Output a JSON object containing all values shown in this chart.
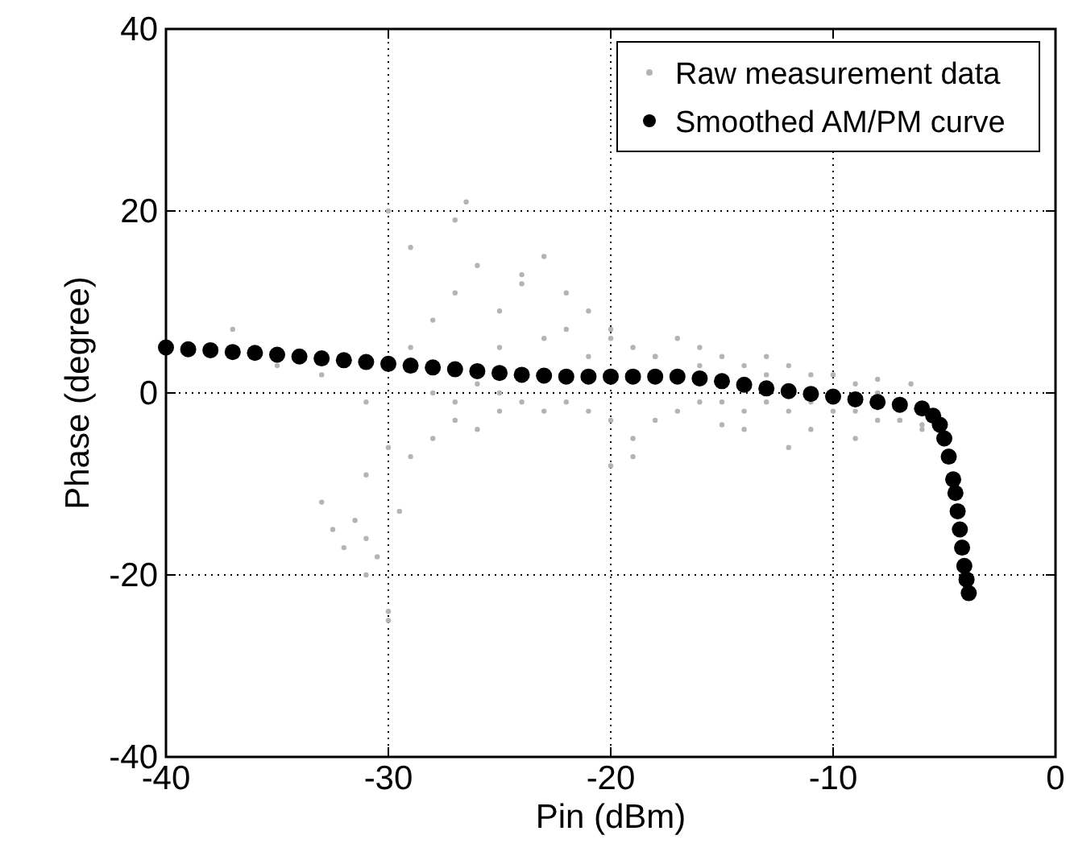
{
  "chart_data": {
    "type": "scatter",
    "xlabel": "Pin (dBm)",
    "ylabel": "Phase (degree)",
    "xlim": [
      -40,
      0
    ],
    "ylim": [
      -40,
      40
    ],
    "xticks": [
      -40,
      -30,
      -20,
      -10,
      0
    ],
    "yticks": [
      -40,
      -20,
      0,
      20,
      40
    ],
    "grid": true,
    "legend": "top right",
    "marker": "circle",
    "series": [
      {
        "name": "Raw measurement data",
        "color": "#b4b4b4",
        "x": [
          -33,
          -32.5,
          -32,
          -31.5,
          -31,
          -30,
          -30.5,
          -29.5,
          -31,
          -30,
          -29,
          -28,
          -27,
          -26,
          -25,
          -33,
          -31,
          -29,
          -28,
          -27,
          -26,
          -25,
          -24,
          -23,
          -22,
          -21,
          -20,
          -19,
          -18,
          -17,
          -16,
          -15,
          -14,
          -13,
          -12,
          -11,
          -10,
          -9,
          -8,
          -7,
          -6,
          -6.5,
          -28,
          -27,
          -26,
          -25,
          -24,
          -23,
          -22,
          -21,
          -20,
          -19,
          -18,
          -17,
          -16,
          -15,
          -14,
          -13,
          -12,
          -11,
          -10,
          -9,
          -8,
          -7,
          -6,
          -30,
          -29,
          -27,
          -26.5,
          -24,
          -22,
          -20,
          -35,
          -37,
          -31,
          -30,
          -20,
          -19,
          -12,
          -9,
          -18,
          -16,
          -14,
          -11,
          -8,
          -21,
          -23,
          -25,
          -13,
          -15
        ],
        "values": [
          -12,
          -15,
          -17,
          -14,
          -20,
          -24,
          -18,
          -13,
          -9,
          -6,
          -7,
          -5,
          -3,
          -4,
          -2,
          2,
          -1,
          5,
          8,
          11,
          14,
          9,
          12,
          15,
          7,
          9,
          6,
          5,
          4,
          6,
          5,
          4,
          3,
          4,
          3,
          2,
          2,
          1,
          0,
          -3,
          -3.5,
          1,
          0,
          -1,
          1,
          0,
          -1,
          -2,
          -1,
          -2,
          -3,
          -5,
          -3,
          -2,
          -1,
          -1,
          -2,
          -1,
          -2,
          -1,
          -2,
          -2,
          -3,
          -3,
          -4,
          20,
          16,
          19,
          21,
          13,
          11,
          7,
          3,
          7,
          -16,
          -25,
          -8,
          -7,
          -6,
          -5,
          4,
          3,
          -4,
          -4,
          1.5,
          4,
          6,
          5,
          2,
          -3.5
        ]
      },
      {
        "name": "Smoothed AM/PM curve",
        "color": "#000000",
        "x": [
          -40,
          -39,
          -38,
          -37,
          -36,
          -35,
          -34,
          -33,
          -32,
          -31,
          -30,
          -29,
          -28,
          -27,
          -26,
          -25,
          -24,
          -23,
          -22,
          -21,
          -20,
          -19,
          -18,
          -17,
          -16,
          -15,
          -14,
          -13,
          -12,
          -11,
          -10,
          -9,
          -8,
          -7,
          -6,
          -5.5,
          -5.2,
          -5,
          -4.8,
          -4.6,
          -4.5,
          -4.4,
          -4.3,
          -4.2,
          -4.1,
          -4,
          -3.9
        ],
        "values": [
          5,
          4.8,
          4.7,
          4.5,
          4.4,
          4.2,
          4,
          3.8,
          3.6,
          3.4,
          3.2,
          3,
          2.8,
          2.6,
          2.4,
          2.2,
          2,
          1.9,
          1.8,
          1.8,
          1.8,
          1.8,
          1.8,
          1.8,
          1.6,
          1.3,
          0.9,
          0.5,
          0.2,
          -0.1,
          -0.4,
          -0.7,
          -1,
          -1.3,
          -1.7,
          -2.5,
          -3.5,
          -5,
          -7,
          -9.5,
          -11,
          -13,
          -15,
          -17,
          -19,
          -20.5,
          -22
        ]
      }
    ]
  }
}
